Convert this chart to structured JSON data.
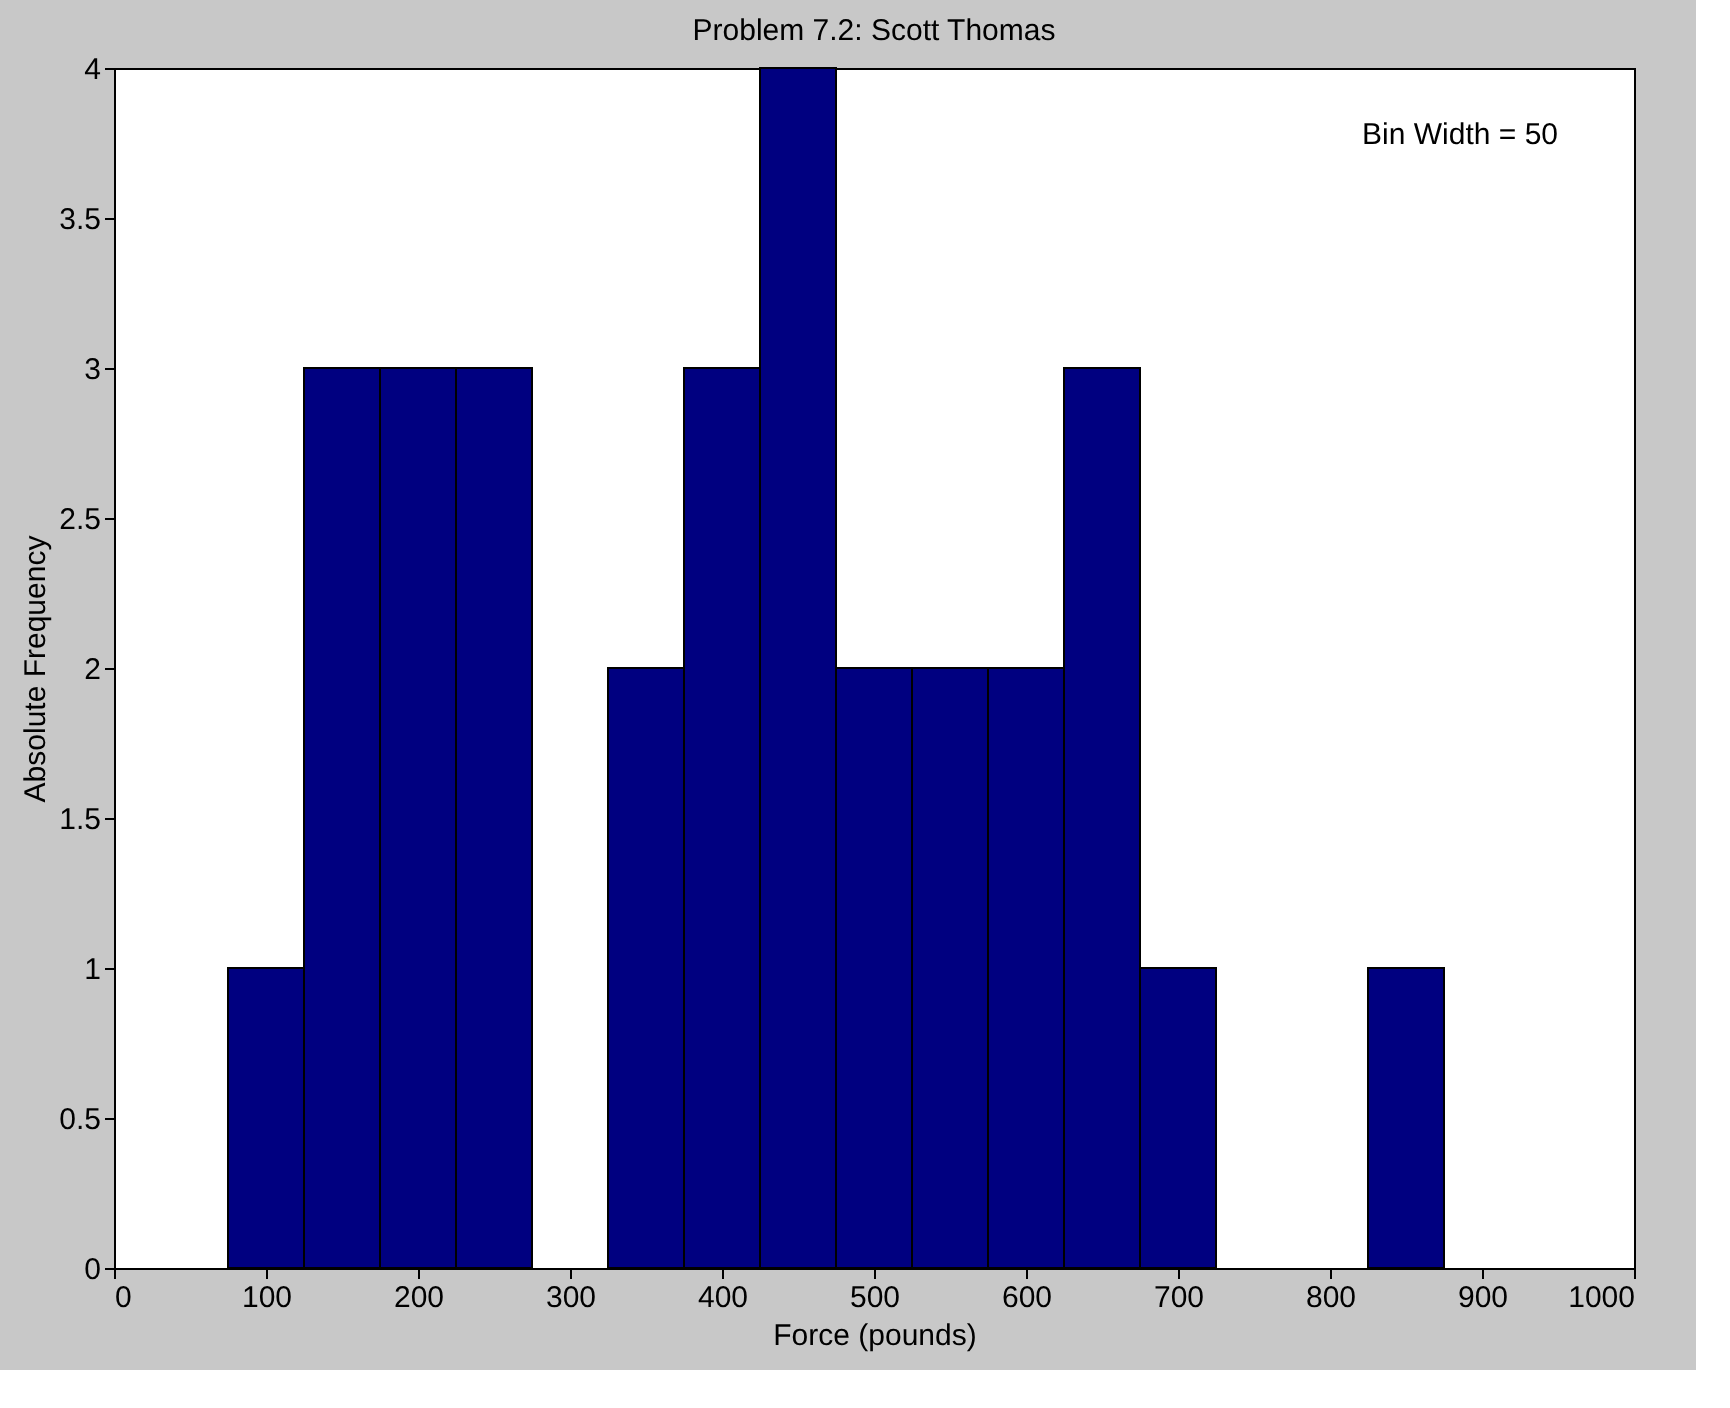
{
  "chart_data": {
    "type": "histogram",
    "title": "Problem 7.2: Scott Thomas",
    "xlabel": "Force (pounds)",
    "ylabel": "Absolute Frequency",
    "bins": [
      75,
      125,
      175,
      225,
      275,
      325,
      375,
      425,
      475,
      525,
      575,
      625,
      675,
      725,
      775,
      825,
      875
    ],
    "values": [
      1,
      3,
      3,
      3,
      0,
      2,
      3,
      4,
      2,
      2,
      2,
      3,
      1,
      0,
      0,
      1
    ],
    "color": "#000080",
    "xlim": [
      0,
      1000
    ],
    "xticks": [
      0,
      100,
      200,
      300,
      400,
      500,
      600,
      700,
      800,
      900,
      1000
    ],
    "ylim": [
      0,
      4
    ],
    "yticks": [
      0,
      0.5,
      1,
      1.5,
      2,
      2.5,
      3,
      3.5,
      4
    ],
    "grid": false,
    "annotations": [
      "Bin Width = 50"
    ]
  }
}
